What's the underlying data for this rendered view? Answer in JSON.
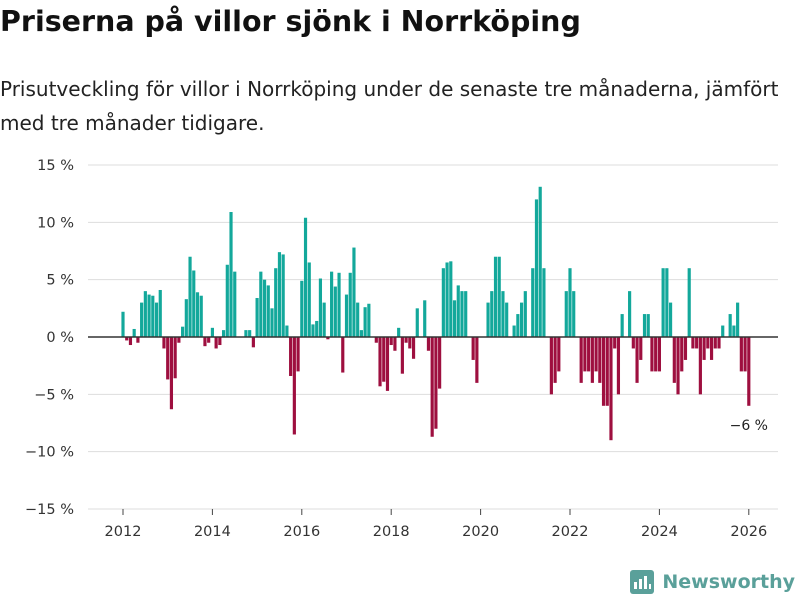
{
  "title": "Priserna på villor sjönk i Norrköping",
  "subtitle": "Prisutveckling för villor i Norrköping under de senaste tre månaderna, jämfört med tre månader tidigare.",
  "brand": "Newsworthy",
  "colors": {
    "positive": "#13a89b",
    "negative": "#9e0f3f",
    "grid": "#dddddd",
    "zero": "#333333"
  },
  "chart_data": {
    "type": "bar",
    "x_unit": "month",
    "start": "2012-01",
    "ylim": [
      -15,
      15
    ],
    "yticks": [
      15,
      10,
      5,
      0,
      -5,
      -10,
      -15
    ],
    "ytick_labels": [
      "15 %",
      "10 %",
      "5 %",
      "0 %",
      "−5 %",
      "−10 %",
      "−15 %"
    ],
    "xticks": [
      2012,
      2014,
      2016,
      2018,
      2020,
      2022,
      2024,
      2026
    ],
    "xtick_labels": [
      "2012",
      "2014",
      "2016",
      "2018",
      "2020",
      "2022",
      "2024",
      "2026"
    ],
    "annotation": {
      "label": "−6 %",
      "value": -6
    },
    "values": [
      2.2,
      -0.3,
      -0.7,
      0.7,
      -0.5,
      3.0,
      4.0,
      3.7,
      3.6,
      3.0,
      4.1,
      -1.0,
      -3.7,
      -6.3,
      -3.6,
      -0.5,
      0.9,
      3.3,
      7.0,
      5.8,
      3.9,
      3.6,
      -0.8,
      -0.5,
      0.8,
      -1.0,
      -0.7,
      0.6,
      6.3,
      10.9,
      5.7,
      0.0,
      0.0,
      0.6,
      0.6,
      -0.9,
      3.4,
      5.7,
      5.0,
      4.5,
      2.5,
      6.0,
      7.4,
      7.2,
      1.0,
      -3.4,
      -8.5,
      -3.0,
      4.9,
      10.4,
      6.5,
      1.1,
      1.4,
      5.1,
      3.0,
      -0.2,
      5.7,
      4.4,
      5.6,
      -3.1,
      3.7,
      5.6,
      7.8,
      3.0,
      0.6,
      2.6,
      2.9,
      0.0,
      -0.5,
      -4.3,
      -3.9,
      -4.7,
      -0.7,
      -1.2,
      0.8,
      -3.2,
      -0.5,
      -1.0,
      -1.9,
      2.5,
      0.0,
      3.2,
      -1.2,
      -8.7,
      -8.0,
      -4.5,
      6.0,
      6.5,
      6.6,
      3.2,
      4.5,
      4.0,
      4.0,
      0.0,
      -2.0,
      -4.0,
      0.0,
      0.0,
      3.0,
      4.0,
      7.0,
      7.0,
      4.0,
      3.0,
      0.0,
      1.0,
      2.0,
      3.0,
      4.0,
      0.0,
      6.0,
      12.0,
      13.1,
      6.0,
      0.0,
      -5.0,
      -4.0,
      -3.0,
      0.0,
      4.0,
      6.0,
      4.0,
      0.0,
      -4.0,
      -3.0,
      -3.0,
      -4.0,
      -3.0,
      -4.0,
      -6.0,
      -6.0,
      -9.0,
      -1.0,
      -5.0,
      2.0,
      0.0,
      4.0,
      -1.0,
      -4.0,
      -2.0,
      2.0,
      2.0,
      -3.0,
      -3.0,
      -3.0,
      6.0,
      6.0,
      3.0,
      -4.0,
      -5.0,
      -3.0,
      -2.0,
      6.0,
      -1.0,
      -1.0,
      -5.0,
      -2.0,
      -1.0,
      -2.0,
      -1.0,
      -1.0,
      1.0,
      0.0,
      2.0,
      1.0,
      3.0,
      -3.0,
      -3.0,
      -6.0
    ]
  }
}
